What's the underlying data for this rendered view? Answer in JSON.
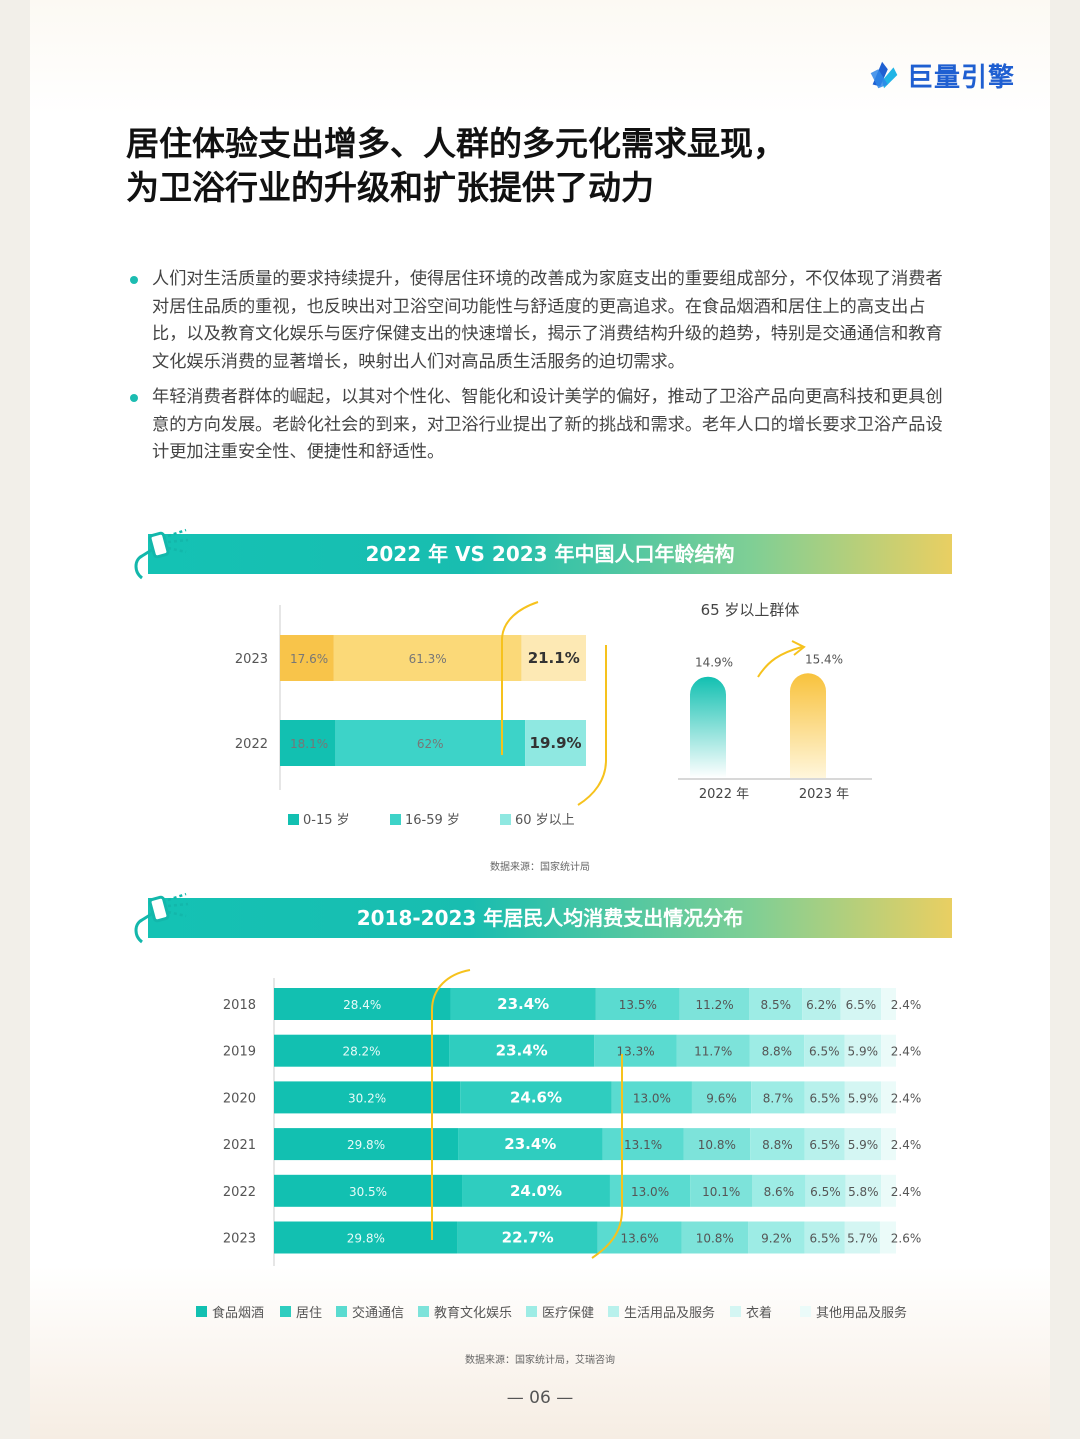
{
  "brand": {
    "name": "巨量引擎"
  },
  "title": {
    "line1": "居住体验支出增多、人群的多元化需求显现，",
    "line2": "为卫浴行业的升级和扩张提供了动力"
  },
  "bullets": [
    "人们对生活质量的要求持续提升，使得居住环境的改善成为家庭支出的重要组成部分，不仅体现了消费者对居住品质的重视，也反映出对卫浴空间功能性与舒适度的更高追求。在食品烟酒和居住上的高支出占比，以及教育文化娱乐与医疗保健支出的快速增长，揭示了消费结构升级的趋势，特别是交通通信和教育文化娱乐消费的显著增长，映射出人们对高品质生活服务的迫切需求。",
    "年轻消费者群体的崛起，以其对个性化、智能化和设计美学的偏好，推动了卫浴产品向更高科技和更具创意的方向发展。老龄化社会的到来，对卫浴行业提出了新的挑战和需求。老年人口的增长要求卫浴产品设计更加注重安全性、便捷性和舒适性。"
  ],
  "section1": {
    "heading": "2022 年 VS 2023 年中国人口年龄结构",
    "source": "数据来源：国家统计局"
  },
  "section2": {
    "heading": "2018-2023 年居民人均消费支出情况分布",
    "source": "数据来源：国家统计局，艾瑞咨询"
  },
  "page_number": "— 06 —",
  "colors": {
    "teal_dark": "#12c0b1",
    "teal_mid": "#3dd3c8",
    "teal_light": "#8fe8e1",
    "yellow_dark": "#f8c44a",
    "yellow_mid": "#fbd978",
    "yellow_light": "#fde9b4",
    "accent_line": "#f6c21d"
  },
  "chart_data": [
    {
      "type": "bar",
      "orientation": "horizontal-stacked",
      "categories": [
        "2023",
        "2022"
      ],
      "series": [
        {
          "name": "0-15 岁",
          "values": [
            17.6,
            18.1
          ],
          "labels": [
            "17.6%",
            "18.1%"
          ]
        },
        {
          "name": "16-59 岁",
          "values": [
            61.3,
            62
          ],
          "labels": [
            "61.3%",
            "62%"
          ]
        },
        {
          "name": "60 岁以上",
          "values": [
            21.1,
            19.9
          ],
          "labels": [
            "21.1%",
            "19.9%"
          ]
        }
      ],
      "legend": "bottom"
    },
    {
      "type": "bar",
      "title": "65 岁以上群体",
      "categories": [
        "2022 年",
        "2023 年"
      ],
      "values": [
        14.9,
        15.4
      ],
      "labels": [
        "14.9%",
        "15.4%"
      ]
    },
    {
      "type": "bar",
      "orientation": "horizontal-stacked",
      "categories": [
        "2018",
        "2019",
        "2020",
        "2021",
        "2022",
        "2023"
      ],
      "series": [
        {
          "name": "食品烟酒",
          "values": [
            28.4,
            28.2,
            30.2,
            29.8,
            30.5,
            29.8
          ]
        },
        {
          "name": "居住",
          "values": [
            23.4,
            23.4,
            24.6,
            23.4,
            24.0,
            22.7
          ]
        },
        {
          "name": "交通通信",
          "values": [
            13.5,
            13.3,
            13.0,
            13.1,
            13.0,
            13.6
          ]
        },
        {
          "name": "教育文化娱乐",
          "values": [
            11.2,
            11.7,
            9.6,
            10.8,
            10.1,
            10.8
          ]
        },
        {
          "name": "医疗保健",
          "values": [
            8.5,
            8.8,
            8.7,
            8.8,
            8.6,
            9.2
          ]
        },
        {
          "name": "生活用品及服务",
          "values": [
            6.2,
            6.5,
            6.5,
            6.5,
            6.5,
            6.5
          ]
        },
        {
          "name": "衣着",
          "values": [
            6.5,
            5.9,
            5.9,
            5.9,
            5.8,
            5.7
          ]
        },
        {
          "name": "其他用品及服务",
          "values": [
            2.4,
            2.4,
            2.4,
            2.4,
            2.4,
            2.6
          ]
        }
      ],
      "legend": "bottom"
    }
  ]
}
